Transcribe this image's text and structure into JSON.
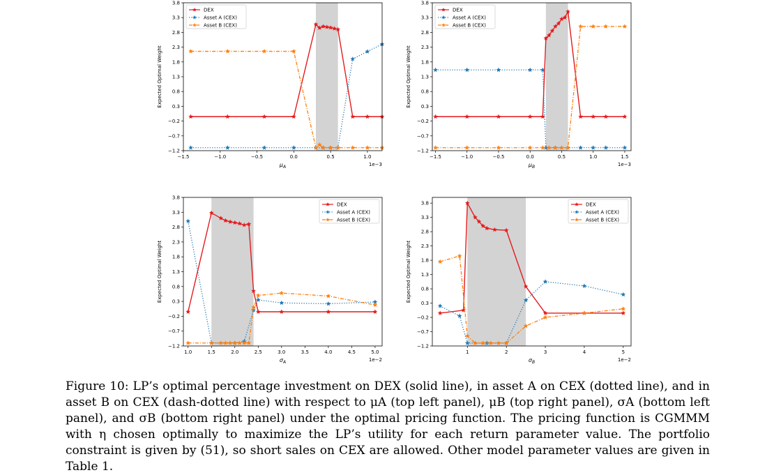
{
  "caption": {
    "text": "Figure 10: LP’s optimal percentage investment on DEX (solid line), in asset A on CEX (dotted line), and in asset B on CEX (dash-dotted line) with respect to μA (top left panel), μB (top right panel), σA (bottom left panel), and σB (bottom right panel) under the optimal pricing function. The pricing function is CGMMM with η chosen optimally to maximize the LP’s utility for each return parameter value. The portfolio constraint is given by (51), so short sales on CEX are allowed. Other model parameter values are given in Table 1."
  },
  "colors": {
    "dex": "#e41a1c",
    "asset_a": "#1f77b4",
    "asset_b": "#ff7f0e",
    "shade": "#d3d3d3"
  },
  "chart_data": [
    {
      "panel": "top-left",
      "type": "line",
      "xlabel": "μA",
      "ylabel": "Expected Optimal Weight",
      "x_multiplier": "1e−3",
      "xlim": [
        -1.5,
        1.2
      ],
      "ylim": [
        -1.2,
        3.8
      ],
      "xticks": [
        -1.5,
        -1.0,
        -0.5,
        0.0,
        0.5,
        1.0
      ],
      "xtick_labels": [
        "−1.5",
        "−1.0",
        "−0.5",
        "0.0",
        "0.5",
        "1.0"
      ],
      "yticks": [
        -1.2,
        -0.7,
        -0.2,
        0.3,
        0.8,
        1.3,
        1.8,
        2.3,
        2.8,
        3.3,
        3.8
      ],
      "ytick_labels": [
        "−1.2",
        "−0.7",
        "−0.2",
        "0.3",
        "0.8",
        "1.3",
        "1.8",
        "2.3",
        "2.8",
        "3.3",
        "3.8"
      ],
      "shaded_region": [
        0.3,
        0.6
      ],
      "legend_position": "top-left",
      "grid": false,
      "series": [
        {
          "name": "DEX",
          "style": "solid",
          "points": [
            [
              -1.4,
              -0.05
            ],
            [
              -0.9,
              -0.05
            ],
            [
              -0.4,
              -0.05
            ],
            [
              0.0,
              -0.05
            ],
            [
              0.3,
              3.07
            ],
            [
              0.35,
              2.95
            ],
            [
              0.4,
              3.0
            ],
            [
              0.45,
              2.98
            ],
            [
              0.5,
              2.96
            ],
            [
              0.55,
              2.93
            ],
            [
              0.6,
              2.9
            ],
            [
              0.8,
              -0.05
            ],
            [
              1.0,
              -0.05
            ],
            [
              1.2,
              -0.05
            ]
          ]
        },
        {
          "name": "Asset A (CEX)",
          "style": "dotted",
          "points": [
            [
              -1.4,
              -1.1
            ],
            [
              -0.9,
              -1.1
            ],
            [
              -0.4,
              -1.1
            ],
            [
              0.0,
              -1.1
            ],
            [
              0.3,
              -1.1
            ],
            [
              0.4,
              -1.1
            ],
            [
              0.5,
              -1.1
            ],
            [
              0.6,
              -1.1
            ],
            [
              0.8,
              1.9
            ],
            [
              1.0,
              2.15
            ],
            [
              1.2,
              2.4
            ]
          ]
        },
        {
          "name": "Asset B (CEX)",
          "style": "dashdot",
          "points": [
            [
              -1.4,
              2.16
            ],
            [
              -0.9,
              2.16
            ],
            [
              -0.4,
              2.16
            ],
            [
              0.0,
              2.16
            ],
            [
              0.3,
              -1.1
            ],
            [
              0.35,
              -1.0
            ],
            [
              0.4,
              -1.1
            ],
            [
              0.5,
              -1.1
            ],
            [
              0.6,
              -1.1
            ],
            [
              0.8,
              -1.1
            ],
            [
              1.0,
              -1.1
            ],
            [
              1.2,
              -1.1
            ]
          ]
        }
      ]
    },
    {
      "panel": "top-right",
      "type": "line",
      "xlabel": "μB",
      "ylabel": "Expected Optimal Weight",
      "x_multiplier": "1e−3",
      "xlim": [
        -1.55,
        1.6
      ],
      "ylim": [
        -1.2,
        3.8
      ],
      "xticks": [
        -1.5,
        -1.0,
        -0.5,
        0.0,
        0.5,
        1.0,
        1.5
      ],
      "xtick_labels": [
        "−1.5",
        "−1.0",
        "−0.5",
        "0.0",
        "0.5",
        "1.0",
        "1.5"
      ],
      "yticks": [
        -1.2,
        -0.7,
        -0.2,
        0.3,
        0.8,
        1.3,
        1.8,
        2.3,
        2.8,
        3.3,
        3.8
      ],
      "ytick_labels": [
        "−1.2",
        "−0.7",
        "−0.2",
        "0.3",
        "0.8",
        "1.3",
        "1.8",
        "2.3",
        "2.8",
        "3.3",
        "3.8"
      ],
      "shaded_region": [
        0.25,
        0.6
      ],
      "legend_position": "top-left",
      "grid": false,
      "series": [
        {
          "name": "DEX",
          "style": "solid",
          "points": [
            [
              -1.5,
              -0.05
            ],
            [
              -1.0,
              -0.05
            ],
            [
              -0.5,
              -0.05
            ],
            [
              0.0,
              -0.05
            ],
            [
              0.2,
              -0.05
            ],
            [
              0.25,
              2.6
            ],
            [
              0.3,
              2.7
            ],
            [
              0.35,
              2.85
            ],
            [
              0.4,
              3.0
            ],
            [
              0.45,
              3.1
            ],
            [
              0.5,
              3.25
            ],
            [
              0.55,
              3.3
            ],
            [
              0.6,
              3.5
            ],
            [
              0.8,
              -0.05
            ],
            [
              1.0,
              -0.05
            ],
            [
              1.2,
              -0.05
            ],
            [
              1.5,
              -0.05
            ]
          ]
        },
        {
          "name": "Asset A (CEX)",
          "style": "dotted",
          "points": [
            [
              -1.5,
              1.53
            ],
            [
              -1.0,
              1.53
            ],
            [
              -0.5,
              1.53
            ],
            [
              0.0,
              1.53
            ],
            [
              0.2,
              1.53
            ],
            [
              0.25,
              -1.1
            ],
            [
              0.4,
              -1.1
            ],
            [
              0.6,
              -1.1
            ],
            [
              0.8,
              -1.1
            ],
            [
              1.0,
              -1.1
            ],
            [
              1.2,
              -1.1
            ],
            [
              1.5,
              -1.1
            ]
          ]
        },
        {
          "name": "Asset B (CEX)",
          "style": "dashdot",
          "points": [
            [
              -1.5,
              -1.1
            ],
            [
              -1.0,
              -1.1
            ],
            [
              -0.5,
              -1.1
            ],
            [
              0.0,
              -1.1
            ],
            [
              0.2,
              -1.1
            ],
            [
              0.3,
              -1.1
            ],
            [
              0.4,
              -1.1
            ],
            [
              0.5,
              -1.1
            ],
            [
              0.6,
              -1.1
            ],
            [
              0.8,
              3.0
            ],
            [
              1.0,
              3.0
            ],
            [
              1.2,
              3.0
            ],
            [
              1.5,
              3.0
            ]
          ]
        }
      ]
    },
    {
      "panel": "bottom-left",
      "type": "line",
      "xlabel": "σA",
      "ylabel": "Expected Optimal Weight",
      "x_multiplier": "1e−2",
      "xlim": [
        0.9,
        5.15
      ],
      "ylim": [
        -1.2,
        3.8
      ],
      "xticks": [
        1.0,
        1.5,
        2.0,
        2.5,
        3.0,
        3.5,
        4.0,
        4.5,
        5.0
      ],
      "xtick_labels": [
        "1.0",
        "1.5",
        "2.0",
        "2.5",
        "3.0",
        "3.5",
        "4.0",
        "4.5",
        "5.0"
      ],
      "yticks": [
        -1.2,
        -0.7,
        -0.2,
        0.3,
        0.8,
        1.3,
        1.8,
        2.3,
        2.8,
        3.3,
        3.8
      ],
      "ytick_labels": [
        "−1.2",
        "−0.7",
        "−0.2",
        "0.3",
        "0.8",
        "1.3",
        "1.8",
        "2.3",
        "2.8",
        "3.3",
        "3.8"
      ],
      "shaded_region": [
        1.5,
        2.4
      ],
      "legend_position": "top-right",
      "grid": false,
      "series": [
        {
          "name": "DEX",
          "style": "solid",
          "points": [
            [
              1.0,
              -0.05
            ],
            [
              1.5,
              3.28
            ],
            [
              1.7,
              3.1
            ],
            [
              1.8,
              3.02
            ],
            [
              1.9,
              2.98
            ],
            [
              2.0,
              2.95
            ],
            [
              2.1,
              2.92
            ],
            [
              2.2,
              2.87
            ],
            [
              2.3,
              2.9
            ],
            [
              2.4,
              0.65
            ],
            [
              2.5,
              -0.05
            ],
            [
              3.0,
              -0.05
            ],
            [
              4.0,
              -0.05
            ],
            [
              5.0,
              -0.05
            ]
          ]
        },
        {
          "name": "Asset A (CEX)",
          "style": "dotted",
          "points": [
            [
              1.0,
              3.0
            ],
            [
              1.5,
              -1.1
            ],
            [
              2.0,
              -1.1
            ],
            [
              2.2,
              -1.05
            ],
            [
              2.4,
              0.0
            ],
            [
              2.5,
              0.35
            ],
            [
              3.0,
              0.25
            ],
            [
              4.0,
              0.22
            ],
            [
              5.0,
              0.28
            ]
          ]
        },
        {
          "name": "Asset B (CEX)",
          "style": "dashdot",
          "points": [
            [
              1.0,
              -1.1
            ],
            [
              1.5,
              -1.1
            ],
            [
              1.7,
              -1.1
            ],
            [
              1.8,
              -1.1
            ],
            [
              1.9,
              -1.1
            ],
            [
              2.0,
              -1.1
            ],
            [
              2.1,
              -1.1
            ],
            [
              2.2,
              -1.1
            ],
            [
              2.3,
              -1.1
            ],
            [
              2.4,
              0.1
            ],
            [
              2.5,
              0.5
            ],
            [
              3.0,
              0.58
            ],
            [
              4.0,
              0.48
            ],
            [
              5.0,
              0.18
            ]
          ]
        }
      ]
    },
    {
      "panel": "bottom-right",
      "type": "line",
      "xlabel": "σB",
      "ylabel": "Expected Optimal Weight",
      "x_multiplier": "1e−2",
      "xlim": [
        0.1,
        5.2
      ],
      "ylim": [
        -1.2,
        4.0
      ],
      "xticks": [
        1,
        2,
        3,
        4,
        5
      ],
      "xtick_labels": [
        "1",
        "2",
        "3",
        "4",
        "5"
      ],
      "yticks": [
        -1.2,
        -0.7,
        -0.2,
        0.3,
        0.8,
        1.3,
        1.8,
        2.3,
        2.8,
        3.3,
        3.8
      ],
      "ytick_labels": [
        "−1.2",
        "−0.7",
        "−0.2",
        "0.3",
        "0.8",
        "1.3",
        "1.8",
        "2.3",
        "2.8",
        "3.3",
        "3.8"
      ],
      "shaded_region": [
        1.0,
        2.5
      ],
      "legend_position": "top-right",
      "grid": false,
      "series": [
        {
          "name": "DEX",
          "style": "solid",
          "points": [
            [
              0.3,
              -0.05
            ],
            [
              0.9,
              0.05
            ],
            [
              1.0,
              3.8
            ],
            [
              1.2,
              3.3
            ],
            [
              1.3,
              3.15
            ],
            [
              1.4,
              3.0
            ],
            [
              1.5,
              2.92
            ],
            [
              1.7,
              2.87
            ],
            [
              2.0,
              2.85
            ],
            [
              2.5,
              0.88
            ],
            [
              3.0,
              -0.05
            ],
            [
              4.0,
              -0.05
            ],
            [
              5.0,
              -0.05
            ]
          ]
        },
        {
          "name": "Asset A (CEX)",
          "style": "dotted",
          "points": [
            [
              0.3,
              0.2
            ],
            [
              0.8,
              -0.15
            ],
            [
              1.0,
              -1.1
            ],
            [
              1.5,
              -1.1
            ],
            [
              2.0,
              -1.1
            ],
            [
              2.5,
              0.4
            ],
            [
              3.0,
              1.05
            ],
            [
              4.0,
              0.9
            ],
            [
              5.0,
              0.6
            ]
          ]
        },
        {
          "name": "Asset B (CEX)",
          "style": "dashdot",
          "points": [
            [
              0.3,
              1.75
            ],
            [
              0.8,
              1.95
            ],
            [
              1.0,
              -0.85
            ],
            [
              1.2,
              -1.1
            ],
            [
              1.4,
              -1.1
            ],
            [
              1.6,
              -1.1
            ],
            [
              1.8,
              -1.1
            ],
            [
              2.0,
              -1.1
            ],
            [
              2.5,
              -0.5
            ],
            [
              3.0,
              -0.2
            ],
            [
              4.0,
              -0.05
            ],
            [
              5.0,
              0.1
            ]
          ]
        }
      ]
    }
  ]
}
